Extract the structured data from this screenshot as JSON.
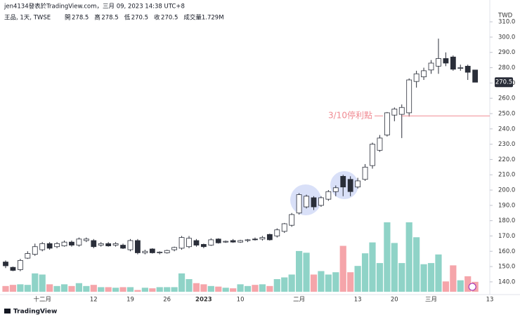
{
  "header": {
    "byline": "jen4134發表於TradingView.com，三月 09, 2023 14:38 UTC+8",
    "symbol": "王品, 1天, TWSE",
    "open_label": "開",
    "high_label": "高",
    "low_label": "低",
    "close_label": "收",
    "volume_text": "成交量1.729M",
    "brand": "TradingView"
  },
  "chart_data": {
    "type": "candlestick",
    "currency": "TWD",
    "categories": [
      null,
      null,
      null,
      null,
      null,
      "十二月",
      null,
      null,
      null,
      null,
      null,
      null,
      "12",
      null,
      null,
      null,
      null,
      "19",
      null,
      null,
      null,
      null,
      "26",
      null,
      null,
      null,
      null,
      "2023",
      null,
      null,
      null,
      null,
      "10",
      null,
      null,
      null,
      null,
      null,
      null,
      null,
      "二月",
      null,
      null,
      null,
      null,
      null,
      null,
      null,
      "13",
      null,
      null,
      null,
      null,
      "20",
      null,
      null,
      null,
      null,
      "三月",
      null,
      null,
      null,
      null,
      null,
      null,
      null,
      "13"
    ],
    "open": [
      153,
      149.5,
      148,
      155.5,
      158,
      161,
      165,
      163,
      163.5,
      166,
      164,
      167,
      167,
      164,
      165,
      164,
      164,
      161,
      167,
      159,
      161.5,
      159,
      159,
      161,
      162,
      163,
      167,
      164.5,
      164,
      168,
      166,
      167,
      166,
      167,
      168,
      168,
      171,
      170,
      173,
      177,
      185,
      189,
      195,
      190,
      194,
      199,
      209,
      207,
      202,
      207,
      216,
      226,
      236,
      249,
      249.5,
      250.5,
      271,
      274,
      278.5,
      281,
      286,
      287,
      280,
      281,
      278.5,
      null,
      null
    ],
    "high": [
      154,
      150,
      155,
      160,
      165,
      166,
      166,
      166,
      167,
      167,
      169,
      169,
      168,
      166,
      166,
      166,
      165,
      168,
      168,
      161,
      162,
      160,
      161,
      163,
      170,
      170,
      168,
      165,
      168.5,
      168.5,
      167,
      168,
      167.5,
      168,
      169,
      170,
      171.5,
      175,
      178.5,
      185,
      198,
      197,
      196,
      196,
      200,
      203,
      210,
      209,
      208,
      217,
      231,
      236,
      251,
      254,
      256,
      273,
      278,
      280,
      285,
      299,
      290,
      288,
      282,
      282,
      278.5,
      null,
      null
    ],
    "low": [
      149,
      147,
      147,
      155,
      157,
      160,
      161,
      162,
      163,
      163,
      163,
      166,
      162,
      163,
      163,
      163,
      161.5,
      160,
      158,
      158,
      158.5,
      158,
      158.5,
      160,
      161,
      162,
      163,
      162,
      163.5,
      165,
      165.5,
      165.5,
      165.5,
      166,
      167,
      167,
      167,
      169,
      172,
      176,
      184,
      188,
      187,
      189,
      193,
      196,
      196,
      196,
      201,
      206,
      214,
      225,
      235,
      245,
      234,
      248,
      267,
      272,
      276,
      276,
      281,
      278,
      278,
      272,
      270.5,
      null,
      null
    ],
    "close": [
      150.5,
      147.5,
      154,
      158.5,
      163,
      165,
      162,
      165,
      166,
      164,
      168,
      168,
      163,
      165,
      163.5,
      165,
      162,
      167,
      159,
      160,
      159,
      159.5,
      160.5,
      162.5,
      169,
      168.5,
      164,
      163,
      167.5,
      165.5,
      166.5,
      166,
      167,
      167.5,
      167.5,
      169,
      167.5,
      174,
      178,
      184,
      197,
      196,
      189,
      195,
      199,
      201.5,
      202,
      199,
      206,
      215,
      230,
      234,
      250.5,
      253,
      254,
      272,
      276,
      278,
      283,
      286,
      283,
      279,
      280,
      277,
      270.5,
      null,
      null
    ],
    "volume": [
      1.0,
      1.2,
      1.3,
      1.2,
      3.2,
      3.0,
      1.3,
      1.0,
      1.3,
      1.0,
      1.5,
      1.0,
      1.2,
      0.8,
      0.8,
      0.7,
      0.8,
      0.8,
      0.3,
      0.7,
      0.6,
      0.8,
      0.8,
      0.8,
      3.2,
      2.2,
      1.5,
      1.3,
      1.0,
      0.9,
      0.7,
      0.6,
      1.3,
      1.0,
      1.2,
      1.3,
      1.0,
      2.2,
      2.5,
      3.0,
      7.1,
      6.8,
      3.0,
      3.6,
      3.0,
      3.4,
      8.0,
      3.4,
      4.5,
      6.7,
      8.6,
      5.0,
      12.1,
      8.5,
      5.0,
      12.1,
      9.5,
      4.8,
      5.0,
      6.5,
      1.8,
      4.6,
      2.0,
      2.7,
      1.729,
      null,
      null
    ],
    "ylim": [
      131.7,
      316
    ],
    "yticks": [
      {
        "value": 140,
        "label": "140.0"
      },
      {
        "value": 150,
        "label": "150.0"
      },
      {
        "value": 160,
        "label": "160.0"
      },
      {
        "value": 170,
        "label": "170.0"
      },
      {
        "value": 180,
        "label": "180.0"
      },
      {
        "value": 190,
        "label": "190.0"
      },
      {
        "value": 200,
        "label": "200.0"
      },
      {
        "value": 210,
        "label": "210.0"
      },
      {
        "value": 220,
        "label": "220.0"
      },
      {
        "value": 230,
        "label": "230.0"
      },
      {
        "value": 240,
        "label": "240.0"
      },
      {
        "value": 250,
        "label": "250.0"
      },
      {
        "value": 260,
        "label": "260.0"
      },
      {
        "value": 270,
        "label": "270.0"
      },
      {
        "value": 280,
        "label": "280.0"
      },
      {
        "value": 290,
        "label": "290.0"
      },
      {
        "value": 300,
        "label": "300.0"
      },
      {
        "value": 310,
        "label": "310.0"
      }
    ],
    "grid": false,
    "up_color": "#ffffff",
    "down_color": "#2a2e39",
    "volume_up_color": "#8fd3c7",
    "volume_down_color": "#f5a5aa",
    "annotation": {
      "text": "3/10停利點",
      "value": 248.5,
      "color": "#f08a92"
    }
  }
}
